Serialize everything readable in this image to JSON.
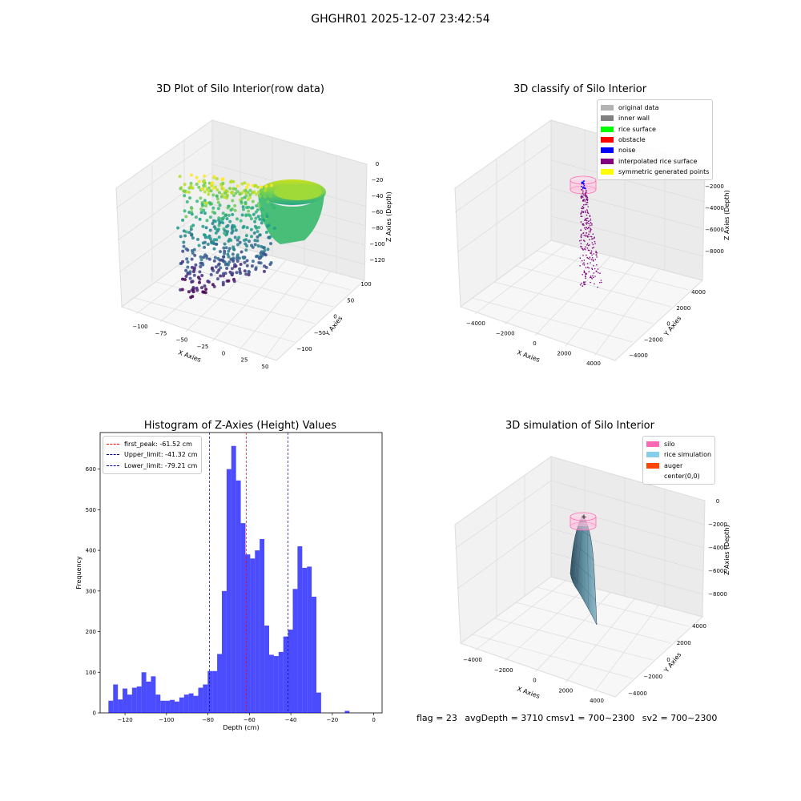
{
  "suptitle": "GHGHR01 2025-12-07 23:42:54",
  "panels": {
    "p1": {
      "title": "3D Plot of Silo Interior(row data)",
      "xlabel": "X Axies",
      "ylabel": "Y Axies",
      "zlabel": "Z Axies (Depth)",
      "xticks": [
        "−100",
        "−75",
        "−50",
        "−25",
        "0",
        "25",
        "50"
      ],
      "yticks": [
        "100",
        "50",
        "0",
        "−50",
        "−100"
      ],
      "zticks": [
        "0",
        "−20",
        "−40",
        "−60",
        "−80",
        "−100",
        "−120"
      ]
    },
    "p2": {
      "title": "3D classify of Silo Interior",
      "xlabel": "X Axies",
      "ylabel": "Y Axies",
      "zlabel": "Z Axies (Depth)",
      "xticks": [
        "−4000",
        "−2000",
        "0",
        "2000",
        "4000"
      ],
      "yticks": [
        "4000",
        "2000",
        "0",
        "−2000",
        "−4000"
      ],
      "zticks": [
        "−2000",
        "−4000",
        "−6000",
        "−8000"
      ],
      "legend": [
        {
          "label": "original data",
          "color": "#b3b3b3"
        },
        {
          "label": "inner wall",
          "color": "#808080"
        },
        {
          "label": "rice surface",
          "color": "#00ff00"
        },
        {
          "label": "obstacle",
          "color": "#ff0000"
        },
        {
          "label": "noise",
          "color": "#0000ff"
        },
        {
          "label": "interpolated rice surface",
          "color": "#800080"
        },
        {
          "label": "symmetric generated points",
          "color": "#ffff00"
        }
      ]
    },
    "p4": {
      "title": "3D simulation of Silo Interior",
      "xlabel": "X Axies",
      "ylabel": "Y Axies",
      "zlabel": "Z Axies (Depth)",
      "xticks": [
        "−4000",
        "−2000",
        "0",
        "2000",
        "4000"
      ],
      "yticks": [
        "4000",
        "2000",
        "0",
        "−2000",
        "−4000"
      ],
      "zticks": [
        "0",
        "−2000",
        "−4000",
        "−6000",
        "−8000"
      ],
      "legend": [
        {
          "label": "silo",
          "color": "#ff69b4"
        },
        {
          "label": "rice simulation",
          "color": "#87ceeb"
        },
        {
          "label": "auger",
          "color": "#ff4500"
        },
        {
          "label": "center(0,0)",
          "color": ""
        }
      ]
    }
  },
  "info": {
    "flag": "flag = 23",
    "avgdepth": "avgDepth = 3710 cmsv1 = 700~2300",
    "sv2": "sv2 = 700~2300"
  },
  "chart_data": [
    {
      "type": "bar",
      "title": "Histogram of Z-Axies (Height) Values",
      "xlabel": "Depth (cm)",
      "ylabel": "Frequency",
      "xlim": [
        -132,
        4
      ],
      "ylim": [
        0,
        690
      ],
      "xticks": [
        -120,
        -100,
        -80,
        -60,
        -40,
        -20,
        0
      ],
      "yticks": [
        0,
        100,
        200,
        300,
        400,
        500,
        600
      ],
      "bar_color": "#0000ff",
      "bin_start": -128,
      "bin_width": 2.28,
      "values": [
        30,
        70,
        33,
        60,
        45,
        62,
        65,
        100,
        77,
        90,
        45,
        30,
        30,
        32,
        28,
        38,
        45,
        48,
        42,
        62,
        70,
        103,
        103,
        145,
        300,
        600,
        657,
        572,
        467,
        390,
        380,
        400,
        428,
        215,
        143,
        140,
        150,
        188,
        205,
        305,
        410,
        357,
        360,
        286,
        50,
        0,
        0,
        0,
        0,
        0,
        5,
        0
      ],
      "lines": [
        {
          "label": "first_peak: -61.52 cm",
          "x": -61.52,
          "color": "#ff0000"
        },
        {
          "label": "Upper_limit: -41.32 cm",
          "x": -41.32,
          "color": "#00008b"
        },
        {
          "label": "Lower_limit: -79.21 cm",
          "x": -79.21,
          "color": "#00008b"
        }
      ],
      "legend_position": "upper-left"
    }
  ]
}
